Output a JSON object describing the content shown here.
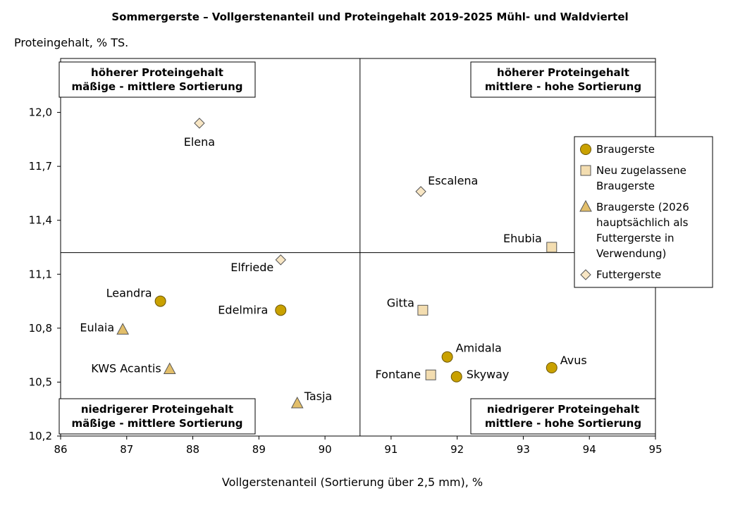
{
  "chart_data": {
    "type": "scatter",
    "title": "Sommergerste – Vollgerstenanteil und Proteingehalt 2019-2025 Mühl- und Waldviertel",
    "xlabel": "Vollgerstenanteil (Sortierung über 2,5 mm), %",
    "ylabel": "Proteingehalt, % TS.",
    "xlim": [
      86,
      95
    ],
    "ylim": [
      10.2,
      12.3
    ],
    "xticks": [
      "86",
      "87",
      "88",
      "89",
      "90",
      "91",
      "92",
      "93",
      "94",
      "95"
    ],
    "yticks": [
      "10,2",
      "10,5",
      "10,8",
      "11,1",
      "11,4",
      "11,7",
      "12,0"
    ],
    "grid": false,
    "legend_placement": "right",
    "dividers": {
      "x": 90.53,
      "y": 11.22
    },
    "quadrant_labels": [
      {
        "pos": "top-left",
        "lines": [
          "höherer Proteingehalt",
          "mäßige - mittlere Sortierung"
        ]
      },
      {
        "pos": "top-right",
        "lines": [
          "höherer Proteingehalt",
          "mittlere - hohe Sortierung"
        ]
      },
      {
        "pos": "bottom-left",
        "lines": [
          "niedrigerer Proteingehalt",
          "mäßige - mittlere Sortierung"
        ]
      },
      {
        "pos": "bottom-right",
        "lines": [
          "niedrigerer Proteingehalt",
          "mittlere - hohe Sortierung"
        ]
      }
    ],
    "series": [
      {
        "name": "Braugerste",
        "marker": "circle",
        "color": "#C9A100",
        "legend_lines": [
          "Braugerste"
        ],
        "points": [
          {
            "label": "Leandra",
            "x": 87.51,
            "y": 10.95
          },
          {
            "label": "Edelmira",
            "x": 89.33,
            "y": 10.9
          },
          {
            "label": "Amidala",
            "x": 91.85,
            "y": 10.64
          },
          {
            "label": "Avus",
            "x": 93.43,
            "y": 10.58
          },
          {
            "label": "Skyway",
            "x": 91.99,
            "y": 10.53
          }
        ]
      },
      {
        "name": "Neu zugelassene Braugerste",
        "marker": "square",
        "color": "#F3DDB0",
        "legend_lines": [
          "Neu zugelassene",
          "Braugerste"
        ],
        "points": [
          {
            "label": "Ehubia",
            "x": 93.43,
            "y": 11.25
          },
          {
            "label": "Gitta",
            "x": 91.48,
            "y": 10.9
          },
          {
            "label": "Fontane",
            "x": 91.6,
            "y": 10.54
          }
        ]
      },
      {
        "name": "Braugerste (2026 hauptsächlich als Futtergerste in Verwendung)",
        "marker": "triangle",
        "color": "#E2BE6A",
        "legend_lines": [
          "Braugerste (2026",
          "hauptsächlich als",
          "Futtergerste in",
          "Verwendung)"
        ],
        "points": [
          {
            "label": "Eulaia",
            "x": 86.94,
            "y": 10.79
          },
          {
            "label": "KWS Acantis",
            "x": 87.65,
            "y": 10.57
          },
          {
            "label": "Tasja",
            "x": 89.58,
            "y": 10.38
          }
        ]
      },
      {
        "name": "Futtergerste",
        "marker": "diamond",
        "color": "#F8E6C4",
        "legend_lines": [
          "Futtergerste"
        ],
        "points": [
          {
            "label": "Elena",
            "x": 88.1,
            "y": 11.94
          },
          {
            "label": "Escalena",
            "x": 91.45,
            "y": 11.56
          },
          {
            "label": "Elfriede",
            "x": 89.33,
            "y": 11.18
          }
        ]
      }
    ]
  }
}
